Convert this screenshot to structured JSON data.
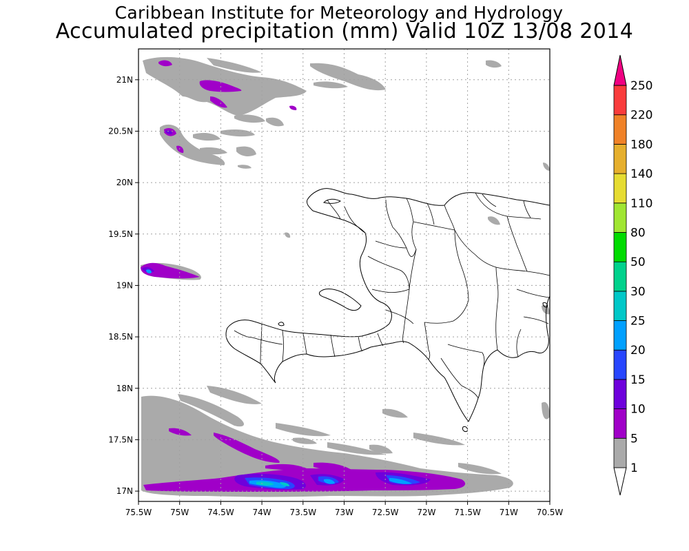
{
  "title": {
    "line1": "Caribbean Institute for Meteorology and Hydrology",
    "line2": "Accumulated precipitation (mm) Valid 10Z 13/08 2014"
  },
  "map": {
    "lon_range": [
      -75.5,
      -70.5
    ],
    "lat_range": [
      16.9,
      21.3
    ],
    "grid": "dotted",
    "x_ticks": [
      "75.5W",
      "75W",
      "74.5W",
      "74W",
      "73.5W",
      "73W",
      "72.5W",
      "72W",
      "71.5W",
      "71W",
      "70.5W"
    ],
    "y_ticks": [
      "17N",
      "17.5N",
      "18N",
      "18.5N",
      "19N",
      "19.5N",
      "20N",
      "20.5N",
      "21N"
    ],
    "regions": [
      "Haiti",
      "Dominican Republic",
      "Tortuga",
      "Gonave Island"
    ]
  },
  "colorbar": {
    "labels": [
      "1",
      "5",
      "10",
      "15",
      "20",
      "25",
      "30",
      "50",
      "80",
      "110",
      "140",
      "180",
      "220",
      "250"
    ],
    "colors": [
      "#aaaaaa",
      "#a000c8",
      "#6e00dc",
      "#2846ff",
      "#00a0ff",
      "#00c8c8",
      "#00d28c",
      "#00dc00",
      "#a0e632",
      "#e6dc32",
      "#e6af2d",
      "#f08228",
      "#fa3c3c",
      "#f00082"
    ],
    "low_color": "#ffffff",
    "high_color": "#f00082"
  }
}
